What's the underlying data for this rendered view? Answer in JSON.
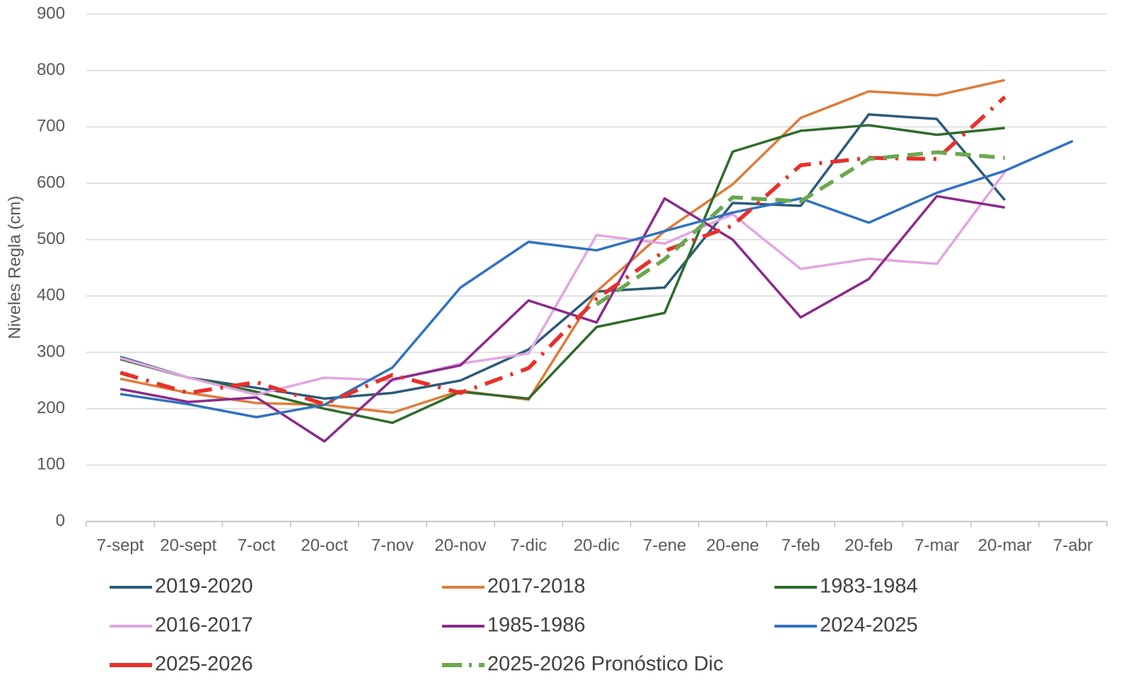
{
  "chart_data": {
    "type": "line",
    "y_label": "Niveles Regla (cm)",
    "categories": [
      "7-sept",
      "20-sept",
      "7-oct",
      "20-oct",
      "7-nov",
      "20-nov",
      "7-dic",
      "20-dic",
      "7-ene",
      "20-ene",
      "7-feb",
      "20-feb",
      "7-mar",
      "20-mar",
      "7-abr"
    ],
    "ylim": [
      0,
      900
    ],
    "yticks": [
      0,
      100,
      200,
      300,
      400,
      500,
      600,
      700,
      800,
      900
    ],
    "grid": true,
    "legend": "bottom",
    "series": [
      {
        "name": "2019-2020",
        "color": "#2b5b7a",
        "dash": "solid",
        "values": [
          292,
          255,
          237,
          218,
          228,
          250,
          305,
          408,
          415,
          565,
          560,
          722,
          714,
          570,
          null
        ]
      },
      {
        "name": "2017-2018",
        "color": "#e07b39",
        "dash": "solid",
        "values": [
          253,
          228,
          210,
          207,
          193,
          232,
          216,
          408,
          515,
          598,
          716,
          763,
          756,
          783,
          null
        ]
      },
      {
        "name": "1983-1984",
        "color": "#2e6b2b",
        "dash": "solid",
        "values": [
          288,
          255,
          230,
          200,
          175,
          230,
          218,
          345,
          370,
          656,
          693,
          703,
          686,
          698,
          null
        ]
      },
      {
        "name": "2016-2017",
        "color": "#e2a6e2",
        "dash": "solid",
        "values": [
          290,
          255,
          225,
          255,
          250,
          280,
          298,
          508,
          493,
          545,
          448,
          466,
          457,
          620,
          null
        ]
      },
      {
        "name": "1985-1986",
        "color": "#8c2a8c",
        "dash": "solid",
        "values": [
          235,
          212,
          220,
          142,
          252,
          277,
          392,
          353,
          573,
          500,
          362,
          430,
          577,
          557,
          null
        ]
      },
      {
        "name": "2024-2025",
        "color": "#3072c0",
        "dash": "solid",
        "values": [
          226,
          208,
          185,
          207,
          273,
          415,
          496,
          481,
          515,
          548,
          573,
          530,
          583,
          622,
          675
        ]
      },
      {
        "name": "2025-2026",
        "color": "#e8302a",
        "dash": "dashdot",
        "values": [
          264,
          228,
          247,
          208,
          260,
          228,
          272,
          395,
          480,
          525,
          632,
          645,
          643,
          753,
          null
        ]
      },
      {
        "name": "2025-2026 Pronóstico Dic",
        "color": "#6aa84f",
        "dash": "dash",
        "values": [
          null,
          null,
          null,
          null,
          null,
          null,
          null,
          385,
          465,
          575,
          568,
          643,
          655,
          645,
          null
        ]
      }
    ]
  }
}
